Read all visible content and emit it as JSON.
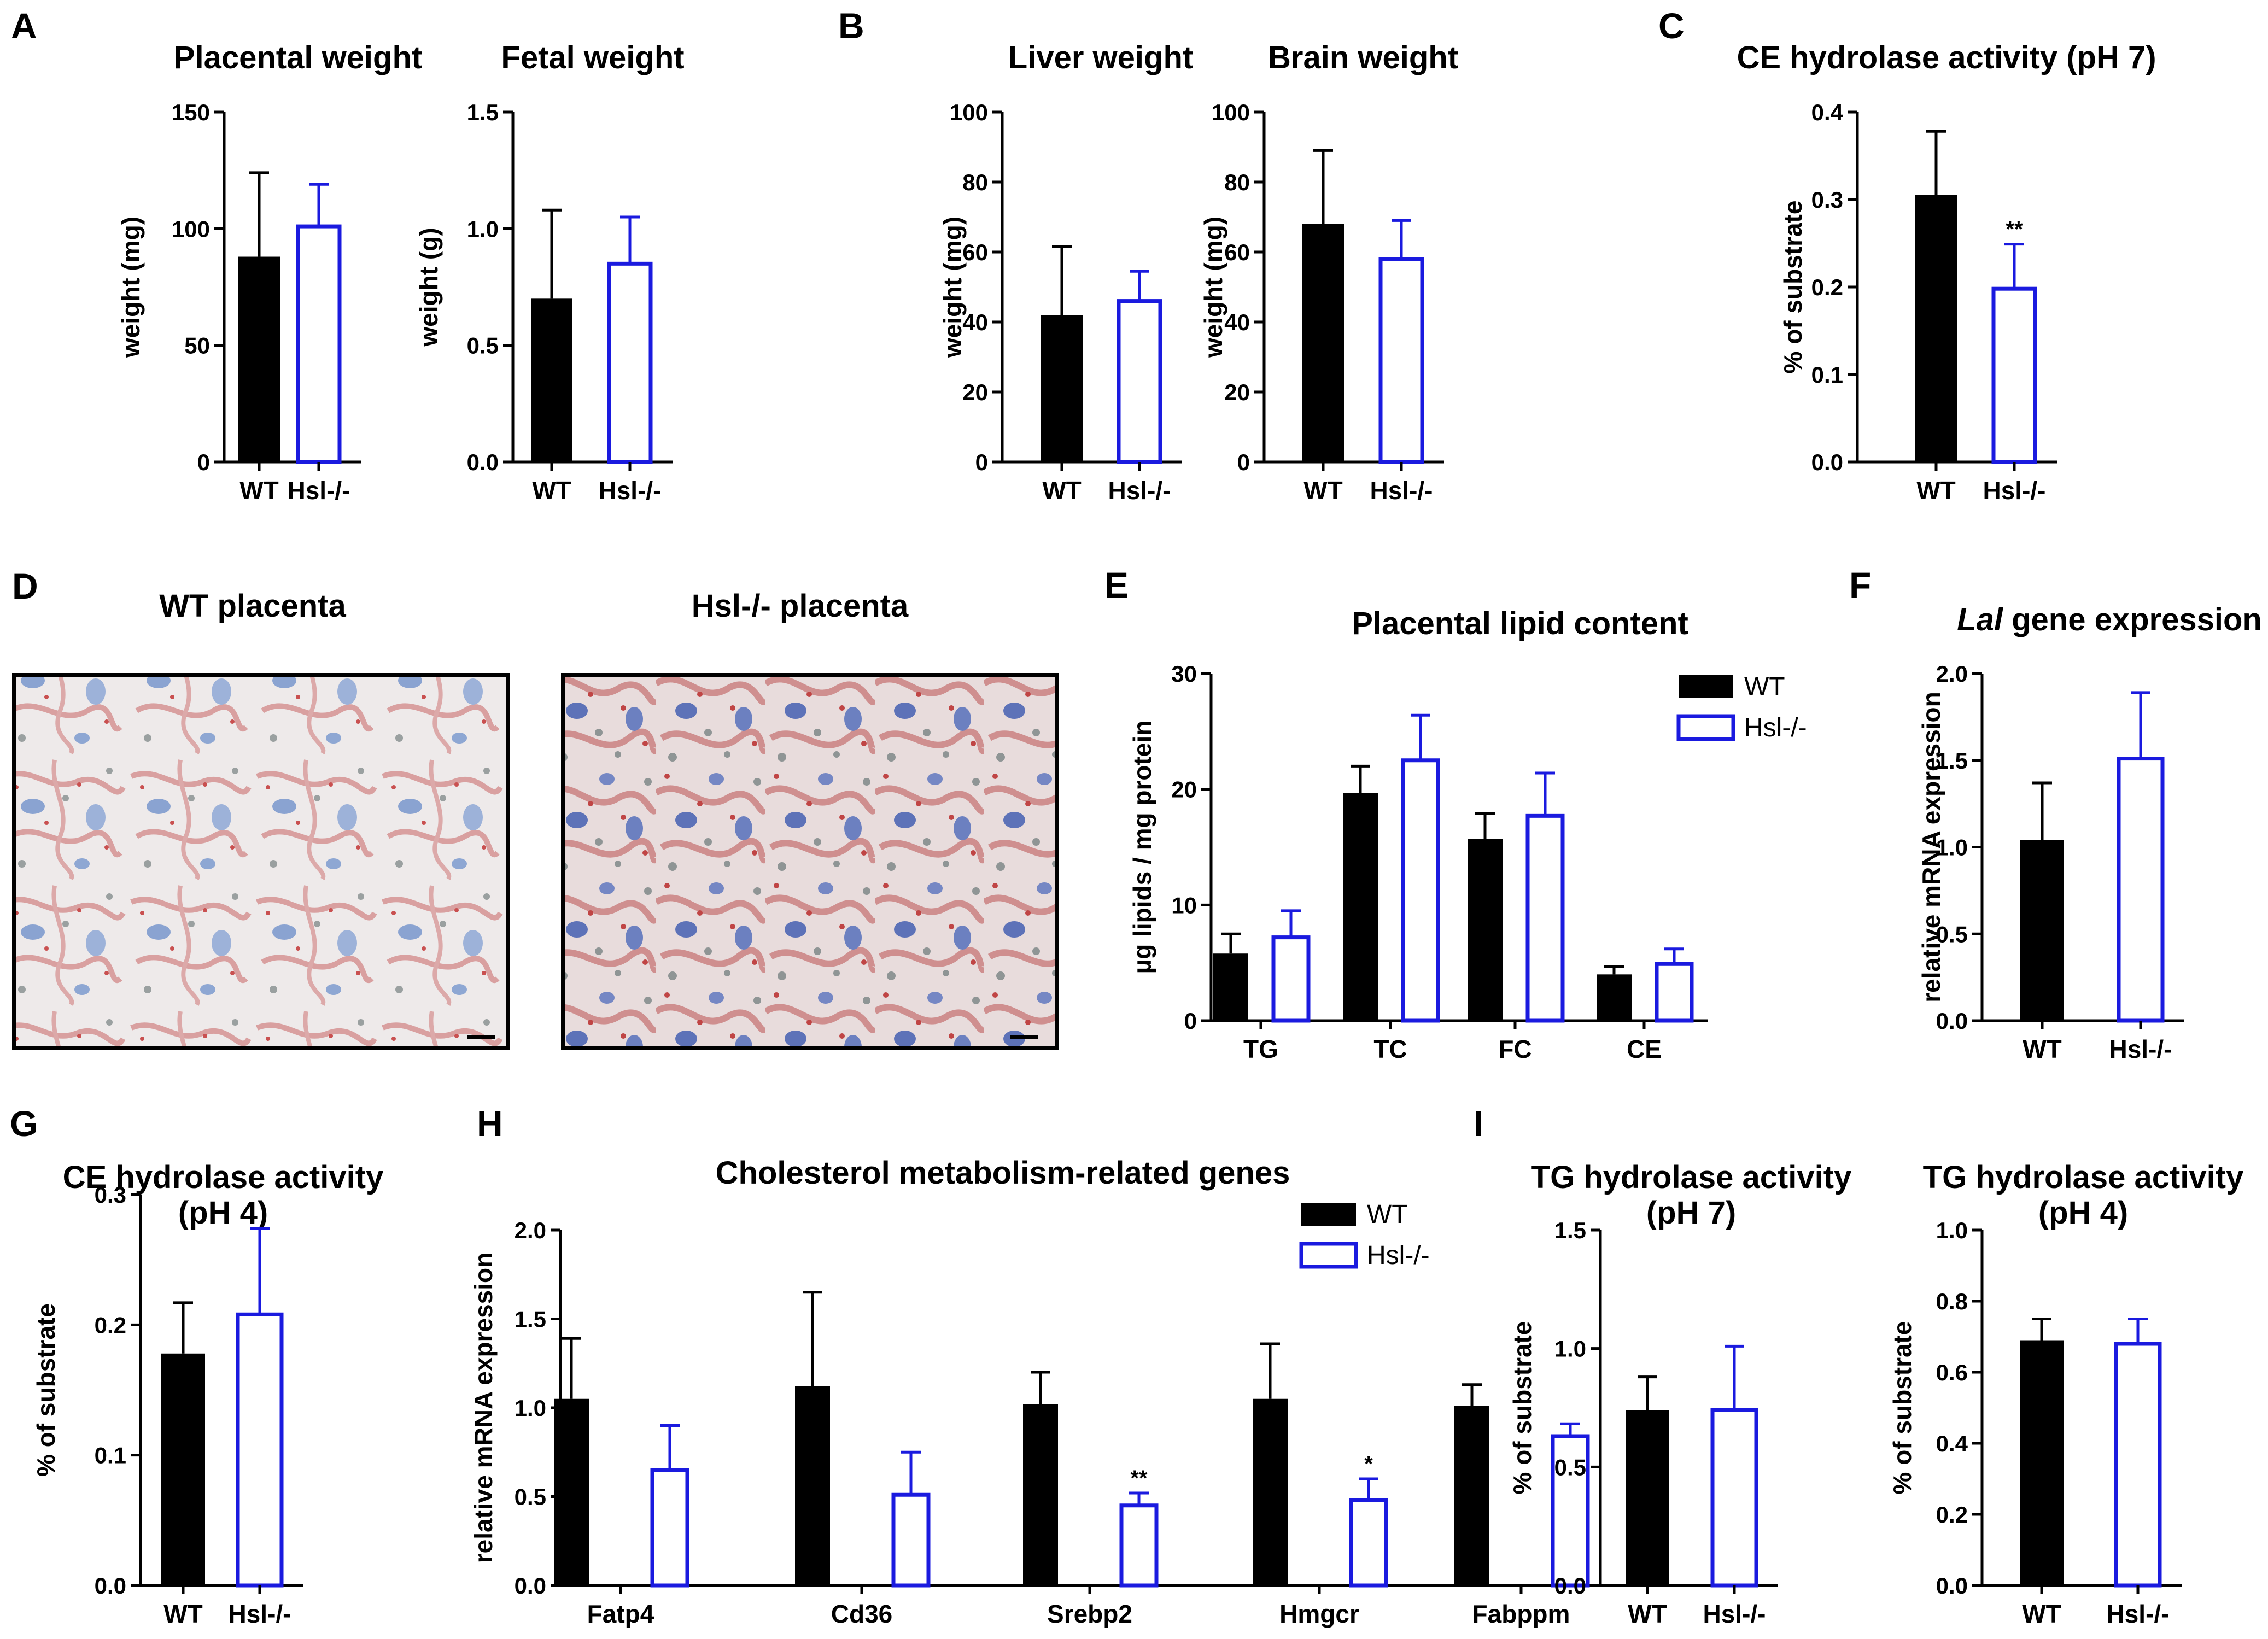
{
  "colors": {
    "wt": "#000000",
    "hsl": "#1a1adf"
  },
  "histology": {
    "label": "D",
    "left_title": "WT placenta",
    "right_title": "Hsl-/- placenta"
  },
  "chart_data": [
    {
      "id": "A1",
      "panel_label": "A",
      "type": "bar",
      "title": "Placental weight",
      "ylabel": "weight (mg)",
      "categories": [
        "WT",
        "Hsl-/-"
      ],
      "values": [
        88,
        101
      ],
      "errors": [
        36,
        18
      ],
      "ylim": [
        0,
        150
      ],
      "ytick_labels": [
        "0",
        "50",
        "100",
        "150"
      ]
    },
    {
      "id": "A2",
      "type": "bar",
      "title": "Fetal weight",
      "ylabel": "weight (g)",
      "categories": [
        "WT",
        "Hsl-/-"
      ],
      "values": [
        0.7,
        0.85
      ],
      "errors": [
        0.38,
        0.2
      ],
      "ylim": [
        0,
        1.5
      ],
      "ytick_labels": [
        "0.0",
        "0.5",
        "1.0",
        "1.5"
      ]
    },
    {
      "id": "B1",
      "panel_label": "B",
      "type": "bar",
      "title": "Liver weight",
      "ylabel": "weight (mg)",
      "categories": [
        "WT",
        "Hsl-/-"
      ],
      "values": [
        42,
        46
      ],
      "errors": [
        19.5,
        8.5
      ],
      "ylim": [
        0,
        100
      ],
      "ytick_labels": [
        "0",
        "20",
        "40",
        "60",
        "80",
        "100"
      ]
    },
    {
      "id": "B2",
      "type": "bar",
      "title": "Brain weight",
      "ylabel": "weight (mg)",
      "categories": [
        "WT",
        "Hsl-/-"
      ],
      "values": [
        68,
        58
      ],
      "errors": [
        21,
        11
      ],
      "ylim": [
        0,
        100
      ],
      "ytick_labels": [
        "0",
        "20",
        "40",
        "60",
        "80",
        "100"
      ]
    },
    {
      "id": "C",
      "panel_label": "C",
      "type": "bar",
      "title": "CE hydrolase activity (pH 7)",
      "ylabel": "% of substrate",
      "categories": [
        "WT",
        "Hsl-/-"
      ],
      "values": [
        0.305,
        0.198
      ],
      "errors": [
        0.073,
        0.051
      ],
      "significance": [
        "",
        "**"
      ],
      "ylim": [
        0,
        0.4
      ],
      "ytick_labels": [
        "0.0",
        "0.1",
        "0.2",
        "0.3",
        "0.4"
      ]
    },
    {
      "id": "E",
      "panel_label": "E",
      "type": "bar",
      "title": "Placental lipid content",
      "ylabel": "µg lipids / mg protein",
      "categories": [
        "TG",
        "TC",
        "FC",
        "CE"
      ],
      "series": [
        {
          "name": "WT",
          "values": [
            5.8,
            19.7,
            15.7,
            4.0
          ],
          "errors": [
            1.7,
            2.3,
            2.2,
            0.7
          ]
        },
        {
          "name": "Hsl-/-",
          "values": [
            7.2,
            22.5,
            17.7,
            4.9
          ],
          "errors": [
            2.3,
            3.9,
            3.7,
            1.3
          ]
        }
      ],
      "ylim": [
        0,
        30
      ],
      "ytick_labels": [
        "0",
        "10",
        "20",
        "30"
      ],
      "legend_position": "top-right"
    },
    {
      "id": "F",
      "panel_label": "F",
      "type": "bar",
      "title_italic": "Lal",
      "title_rest": " gene expression",
      "ylabel": "relative mRNA expression",
      "categories": [
        "WT",
        "Hsl-/-"
      ],
      "values": [
        1.04,
        1.51
      ],
      "errors": [
        0.33,
        0.38
      ],
      "ylim": [
        0,
        2.0
      ],
      "ytick_labels": [
        "0.0",
        "0.5",
        "1.0",
        "1.5",
        "2.0"
      ]
    },
    {
      "id": "G",
      "panel_label": "G",
      "type": "bar",
      "title_lines": [
        "CE hydrolase activity",
        "(pH 4)"
      ],
      "ylabel": "% of substrate",
      "categories": [
        "WT",
        "Hsl-/-"
      ],
      "values": [
        0.178,
        0.208
      ],
      "errors": [
        0.039,
        0.066
      ],
      "ylim": [
        0,
        0.3
      ],
      "ytick_labels": [
        "0.0",
        "0.1",
        "0.2",
        "0.3"
      ]
    },
    {
      "id": "H",
      "panel_label": "H",
      "type": "bar",
      "title": "Cholesterol metabolism-related genes",
      "ylabel": "relative mRNA expression",
      "categories": [
        "Fatp4",
        "Cd36",
        "Srebp2",
        "Hmgcr",
        "Fabppm"
      ],
      "series": [
        {
          "name": "WT",
          "values": [
            1.05,
            1.12,
            1.02,
            1.05,
            1.01
          ],
          "errors": [
            0.34,
            0.53,
            0.18,
            0.31,
            0.12
          ]
        },
        {
          "name": "Hsl-/-",
          "values": [
            0.65,
            0.51,
            0.45,
            0.48,
            0.84
          ],
          "errors": [
            0.25,
            0.24,
            0.07,
            0.12,
            0.07
          ]
        }
      ],
      "significance_hsl": [
        "",
        "",
        "**",
        "*",
        ""
      ],
      "ylim": [
        0,
        2.0
      ],
      "ytick_labels": [
        "0.0",
        "0.5",
        "1.0",
        "1.5",
        "2.0"
      ],
      "legend_position": "top-right"
    },
    {
      "id": "I1",
      "panel_label": "I",
      "type": "bar",
      "title_lines": [
        "TG hydrolase activity",
        "(pH 7)"
      ],
      "ylabel": "% of substrate",
      "categories": [
        "WT",
        "Hsl-/-"
      ],
      "values": [
        0.74,
        0.74
      ],
      "errors": [
        0.14,
        0.27
      ],
      "ylim": [
        0,
        1.5
      ],
      "ytick_labels": [
        "0.0",
        "0.5",
        "1.0",
        "1.5"
      ]
    },
    {
      "id": "I2",
      "type": "bar",
      "title_lines": [
        "TG hydrolase activity",
        "(pH 4)"
      ],
      "ylabel": "% of substrate",
      "categories": [
        "WT",
        "Hsl-/-"
      ],
      "values": [
        0.69,
        0.68
      ],
      "errors": [
        0.06,
        0.07
      ],
      "ylim": [
        0,
        1.0
      ],
      "ytick_labels": [
        "0.0",
        "0.2",
        "0.4",
        "0.6",
        "0.8",
        "1.0"
      ]
    }
  ]
}
